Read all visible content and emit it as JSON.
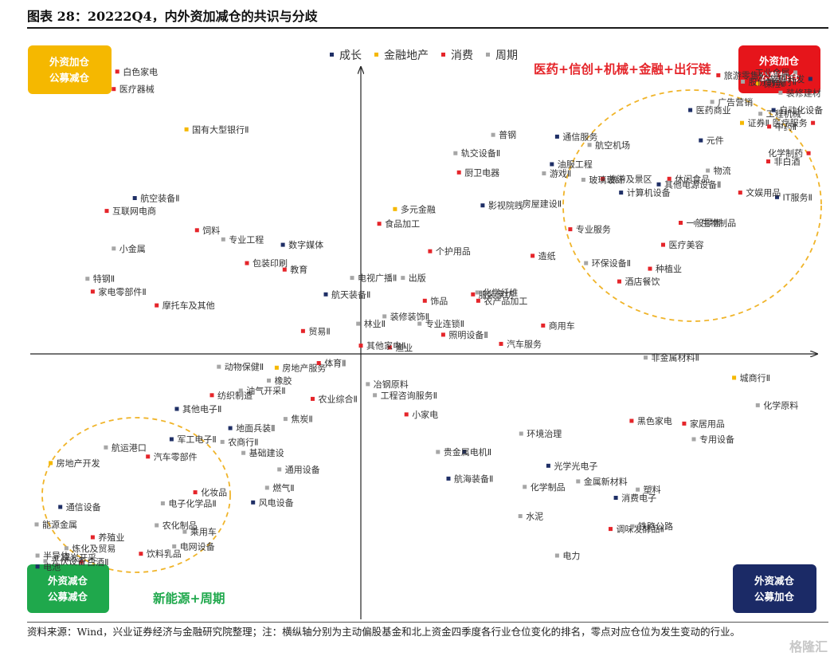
{
  "header": {
    "title": "图表 28：20222Q4，内外资加减仓的共识与分歧"
  },
  "footer": {
    "source": "资料来源：Wind，兴业证券经济与金融研究院整理；注：横纵轴分别为主动偏股基金和北上资金四季度各行业仓位变化的排名，零点对应仓位为发生变动的行业。",
    "watermark": "格隆汇"
  },
  "quadrants": {
    "top_left": "外资加仓\n公募减仓",
    "top_right": "外资加仓\n公募加仓",
    "bottom_left": "外资减仓\n公募减仓",
    "bottom_right": "外资减仓\n公募加仓"
  },
  "annotations": {
    "top_right_theme": "医药+信创+机械+金融+出行链",
    "bottom_left_theme": "新能源+周期"
  },
  "colors": {
    "成长": "#1f2f66",
    "金融地产": "#f5b800",
    "消费": "#e5252a",
    "周期": "#a6a6a6",
    "top_left_box": "#f5b800",
    "top_right_box": "#e6151b",
    "bottom_left_box": "#1fa84c",
    "bottom_right_box": "#1b2a66",
    "top_right_text": "#e5252a",
    "bottom_left_text": "#1fa84c",
    "circle": "#f0b429"
  },
  "chart_data": {
    "type": "scatter",
    "xlabel": "",
    "ylabel": "",
    "xlim": [
      -40,
      54
    ],
    "ylim": [
      -34,
      36
    ],
    "legend_position": "top",
    "series": [
      {
        "name": "成长",
        "points": [
          {
            "label": "软件开发",
            "x": 51.3,
            "y": 30.0
          },
          {
            "label": "自动化设备",
            "x": 47.1,
            "y": 26.6
          },
          {
            "label": "医药商业",
            "x": 37.6,
            "y": 26.6
          },
          {
            "label": "元件",
            "x": 38.8,
            "y": 23.3
          },
          {
            "label": "IT服务Ⅱ",
            "x": 47.5,
            "y": 17.1
          },
          {
            "label": "通信服务",
            "x": 22.4,
            "y": 23.7
          },
          {
            "label": "油服工程",
            "x": 21.8,
            "y": 20.7
          },
          {
            "label": "计算机设备",
            "x": 29.7,
            "y": 17.6
          },
          {
            "label": "其他电源设备Ⅱ",
            "x": 34.0,
            "y": 18.5
          },
          {
            "label": "影视院线",
            "x": 13.9,
            "y": 16.2
          },
          {
            "label": "航空装备Ⅱ",
            "x": -25.8,
            "y": 17.0
          },
          {
            "label": "数字媒体",
            "x": -8.9,
            "y": 11.9
          },
          {
            "label": "航天装备Ⅱ",
            "x": -4.0,
            "y": 6.5
          },
          {
            "label": "其他电子Ⅱ",
            "x": -21.0,
            "y": -6.0
          },
          {
            "label": "军工电子Ⅱ",
            "x": -21.6,
            "y": -9.3
          },
          {
            "label": "地面兵装Ⅱ",
            "x": -14.9,
            "y": -8.1
          },
          {
            "label": "通信设备",
            "x": -34.3,
            "y": -16.7
          },
          {
            "label": "风电设备",
            "x": -12.3,
            "y": -16.2
          },
          {
            "label": "电池",
            "x": -36.9,
            "y": -23.2
          },
          {
            "label": "电机Ⅱ",
            "x": 11.8,
            "y": -10.7
          },
          {
            "label": "光学光电子",
            "x": 21.4,
            "y": -12.2
          },
          {
            "label": "航海装备Ⅱ",
            "x": 10.0,
            "y": -13.6
          },
          {
            "label": "消费电子",
            "x": 29.1,
            "y": -15.7
          }
        ]
      },
      {
        "name": "金融地产",
        "points": [
          {
            "label": "保险Ⅱ",
            "x": 45.3,
            "y": 29.5
          },
          {
            "label": "证券Ⅱ",
            "x": 43.5,
            "y": 25.2
          },
          {
            "label": "国有大型银行Ⅱ",
            "x": -19.9,
            "y": 24.5
          },
          {
            "label": "多元金融",
            "x": 3.9,
            "y": 15.8
          },
          {
            "label": "房地产服务",
            "x": -9.6,
            "y": -1.5
          },
          {
            "label": "房地产开发",
            "x": -35.4,
            "y": -11.9
          },
          {
            "label": "城商行Ⅱ",
            "x": 42.6,
            "y": -2.6
          }
        ]
      },
      {
        "name": "消费",
        "points": [
          {
            "label": "白色家电",
            "x": -27.8,
            "y": 30.8
          },
          {
            "label": "医疗器械",
            "x": -28.2,
            "y": 28.9
          },
          {
            "label": "旅游零售Ⅱ",
            "x": 40.8,
            "y": 30.4
          },
          {
            "label": "医疗服务",
            "x": 51.6,
            "y": 25.2
          },
          {
            "label": "化学制药",
            "x": 51.1,
            "y": 21.9
          },
          {
            "label": "中药Ⅱ",
            "x": 46.6,
            "y": 24.8
          },
          {
            "label": "非白酒",
            "x": 46.5,
            "y": 21.0
          },
          {
            "label": "休闲食品",
            "x": 35.2,
            "y": 19.1
          },
          {
            "label": "文娱用品",
            "x": 43.3,
            "y": 17.6
          },
          {
            "label": "旅游及景区",
            "x": 27.6,
            "y": 19.1
          },
          {
            "label": "一般零售",
            "x": 36.5,
            "y": 14.3
          },
          {
            "label": "医疗美容",
            "x": 34.5,
            "y": 11.9
          },
          {
            "label": "种植业",
            "x": 33.0,
            "y": 9.3
          },
          {
            "label": "酒店餐饮",
            "x": 29.5,
            "y": 7.9
          },
          {
            "label": "专业服务",
            "x": 23.9,
            "y": 13.6
          },
          {
            "label": "造纸",
            "x": 19.6,
            "y": 10.7
          },
          {
            "label": "厨卫电器",
            "x": 11.2,
            "y": 19.8
          },
          {
            "label": "食品加工",
            "x": 2.1,
            "y": 14.2
          },
          {
            "label": "个护用品",
            "x": 7.9,
            "y": 11.2
          },
          {
            "label": "服装家纺",
            "x": 12.8,
            "y": 6.5
          },
          {
            "label": "饰品",
            "x": 7.3,
            "y": 5.8
          },
          {
            "label": "照明设备Ⅱ",
            "x": 9.4,
            "y": 2.1
          },
          {
            "label": "汽车服务",
            "x": 16.0,
            "y": 1.1
          },
          {
            "label": "商用车",
            "x": 20.8,
            "y": 3.1
          },
          {
            "label": "农产品加工",
            "x": 13.4,
            "y": 5.8
          },
          {
            "label": "渔业",
            "x": 3.3,
            "y": 0.7
          },
          {
            "label": "互联网电商",
            "x": -29.0,
            "y": 15.6
          },
          {
            "label": "饲料",
            "x": -18.7,
            "y": 13.5
          },
          {
            "label": "包装印刷",
            "x": -13.0,
            "y": 9.9
          },
          {
            "label": "教育",
            "x": -8.7,
            "y": 9.2
          },
          {
            "label": "家电零部件Ⅱ",
            "x": -30.6,
            "y": 6.8
          },
          {
            "label": "摩托车及其他",
            "x": -23.3,
            "y": 5.3
          },
          {
            "label": "贸易Ⅱ",
            "x": -6.6,
            "y": 2.5
          },
          {
            "label": "其他家电Ⅱ",
            "x": 0.0,
            "y": 0.9
          },
          {
            "label": "体育Ⅱ",
            "x": -4.8,
            "y": -1.0
          },
          {
            "label": "农业综合Ⅱ",
            "x": -5.5,
            "y": -4.9
          },
          {
            "label": "纺织制造",
            "x": -17.0,
            "y": -4.5
          },
          {
            "label": "汽车零部件",
            "x": -24.3,
            "y": -11.2
          },
          {
            "label": "化妆品",
            "x": -18.9,
            "y": -15.1
          },
          {
            "label": "养殖业",
            "x": -30.6,
            "y": -20.0
          },
          {
            "label": "饮料乳品",
            "x": -25.1,
            "y": -21.8
          },
          {
            "label": "白酒Ⅱ",
            "x": -31.9,
            "y": -22.7
          },
          {
            "label": "小家电",
            "x": 5.2,
            "y": -6.6
          },
          {
            "label": "黑色家电",
            "x": 30.9,
            "y": -7.3
          },
          {
            "label": "家居用品",
            "x": 36.9,
            "y": -7.6
          },
          {
            "label": "调味发酵品Ⅱ",
            "x": 28.5,
            "y": -19.1
          }
        ]
      },
      {
        "name": "周期",
        "points": [
          {
            "label": "股份制银行Ⅱ",
            "x": 43.6,
            "y": 29.7
          },
          {
            "label": "工业金属",
            "x": 49.6,
            "y": 30.7
          },
          {
            "label": "装修建材",
            "x": 47.9,
            "y": 28.5
          },
          {
            "label": "工程机械",
            "x": 45.6,
            "y": 26.2
          },
          {
            "label": "广告营销",
            "x": 40.1,
            "y": 27.5
          },
          {
            "label": "物流",
            "x": 39.6,
            "y": 20.0
          },
          {
            "label": "生物制品",
            "x": 38.2,
            "y": 14.3
          },
          {
            "label": "普钢",
            "x": 15.1,
            "y": 23.9
          },
          {
            "label": "航空机场",
            "x": 26.1,
            "y": 22.8
          },
          {
            "label": "轨交设备Ⅱ",
            "x": 10.8,
            "y": 21.9
          },
          {
            "label": "游戏Ⅱ",
            "x": 20.9,
            "y": 19.7
          },
          {
            "label": "玻璃玻纤",
            "x": 25.4,
            "y": 19.0
          },
          {
            "label": "房屋建设Ⅱ",
            "x": 17.8,
            "y": 16.4
          },
          {
            "label": "环保设备Ⅱ",
            "x": 25.7,
            "y": 9.9
          },
          {
            "label": "化学纤维",
            "x": 13.3,
            "y": 6.7
          },
          {
            "label": "出版",
            "x": 4.8,
            "y": 8.3
          },
          {
            "label": "装修装饰Ⅱ",
            "x": 2.7,
            "y": 4.1
          },
          {
            "label": "专业连锁Ⅱ",
            "x": 6.7,
            "y": 3.3
          },
          {
            "label": "小金属",
            "x": -28.2,
            "y": 11.5
          },
          {
            "label": "专业工程",
            "x": -15.7,
            "y": 12.5
          },
          {
            "label": "特钢Ⅱ",
            "x": -31.2,
            "y": 8.2
          },
          {
            "label": "电视广播Ⅱ",
            "x": -1.0,
            "y": 8.3
          },
          {
            "label": "林业Ⅱ",
            "x": -0.3,
            "y": 3.3
          },
          {
            "label": "动物保健Ⅱ",
            "x": -16.2,
            "y": -1.4
          },
          {
            "label": "橡胶",
            "x": -10.5,
            "y": -2.9
          },
          {
            "label": "油气开采Ⅱ",
            "x": -13.7,
            "y": -4.0
          },
          {
            "label": "焦炭Ⅱ",
            "x": -8.6,
            "y": -7.1
          },
          {
            "label": "农商行Ⅱ",
            "x": -15.8,
            "y": -9.6
          },
          {
            "label": "基础建设",
            "x": -13.4,
            "y": -10.8
          },
          {
            "label": "通用设备",
            "x": -9.3,
            "y": -12.6
          },
          {
            "label": "燃气Ⅱ",
            "x": -10.7,
            "y": -14.6
          },
          {
            "label": "航运港口",
            "x": -29.1,
            "y": -10.2
          },
          {
            "label": "电子化学品Ⅱ",
            "x": -22.6,
            "y": -16.3
          },
          {
            "label": "农化制品",
            "x": -23.3,
            "y": -18.7
          },
          {
            "label": "乘用车",
            "x": -20.1,
            "y": -19.4
          },
          {
            "label": "电网设备",
            "x": -21.3,
            "y": -21.0
          },
          {
            "label": "能源金属",
            "x": -37.0,
            "y": -18.6
          },
          {
            "label": "炼化及贸易",
            "x": -33.6,
            "y": -21.2
          },
          {
            "label": "煤炭开采",
            "x": -34.8,
            "y": -22.2
          },
          {
            "label": "半导体",
            "x": -36.9,
            "y": -22.0
          },
          {
            "label": "光伏设备",
            "x": -36.0,
            "y": -22.6
          },
          {
            "label": "冶钢原料",
            "x": 0.8,
            "y": -3.3
          },
          {
            "label": "工程咨询服务Ⅱ",
            "x": 1.6,
            "y": -4.5
          },
          {
            "label": "非金属材料Ⅱ",
            "x": 32.5,
            "y": -0.4
          },
          {
            "label": "化学原料",
            "x": 45.3,
            "y": -5.6
          },
          {
            "label": "环境治理",
            "x": 18.3,
            "y": -8.7
          },
          {
            "label": "专用设备",
            "x": 38.0,
            "y": -9.3
          },
          {
            "label": "贵金属",
            "x": 8.8,
            "y": -10.7
          },
          {
            "label": "化学制品",
            "x": 18.7,
            "y": -14.5
          },
          {
            "label": "金属新材料",
            "x": 24.8,
            "y": -13.9
          },
          {
            "label": "塑料",
            "x": 31.6,
            "y": -14.8
          },
          {
            "label": "水泥",
            "x": 18.2,
            "y": -17.7
          },
          {
            "label": "铁路公路",
            "x": 31.0,
            "y": -18.8
          },
          {
            "label": "电力",
            "x": 22.4,
            "y": -22.0
          }
        ]
      }
    ]
  }
}
